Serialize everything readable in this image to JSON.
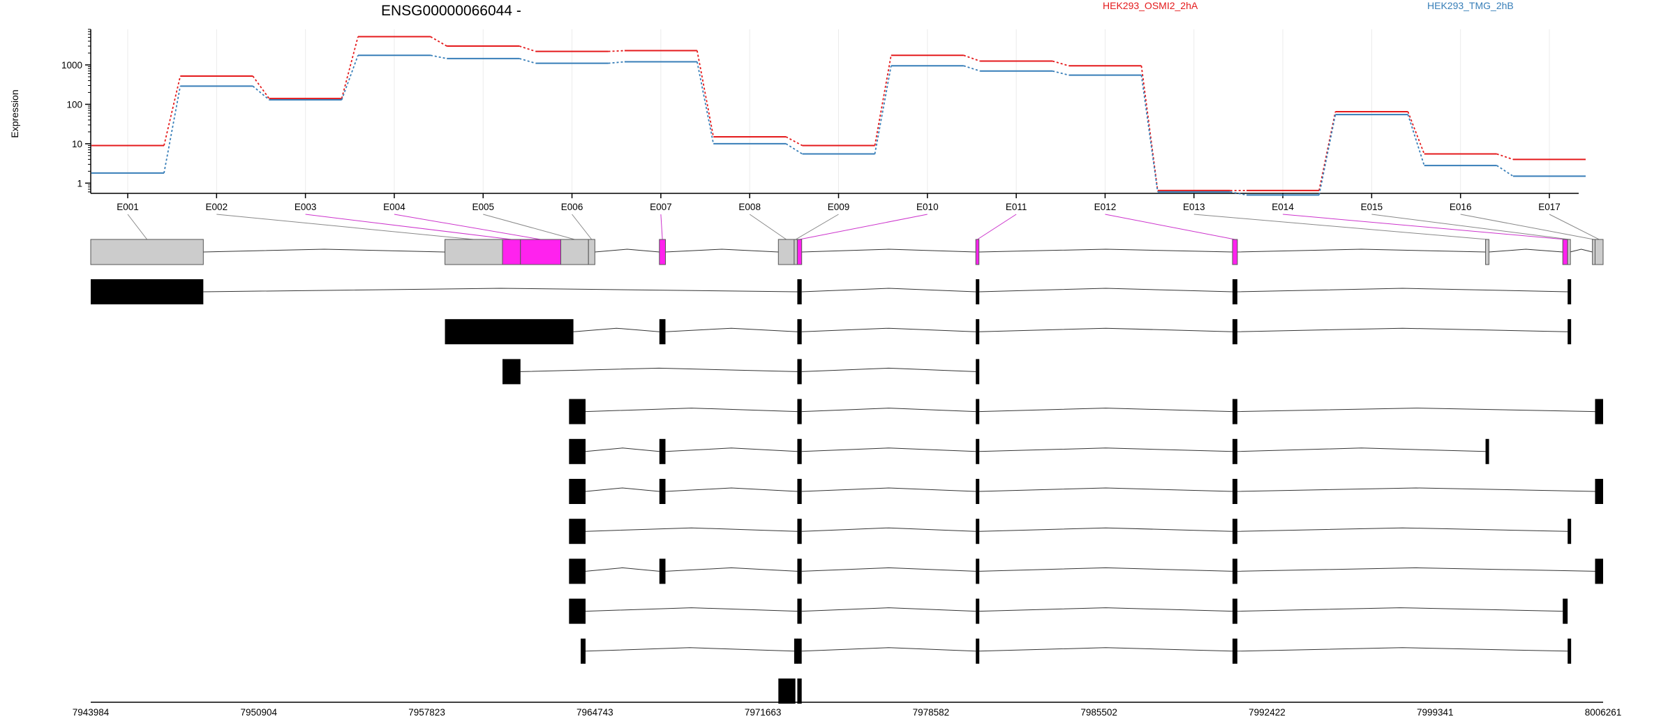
{
  "chart_data": {
    "type": "line",
    "title": "ENSG00000066044 -",
    "ylabel": "Expression",
    "xlabel": "",
    "y_scale": "log10",
    "ylim": [
      0.55,
      8000
    ],
    "y_ticks": [
      {
        "value": 1,
        "label": "1"
      },
      {
        "value": 10,
        "label": "10"
      },
      {
        "value": 100,
        "label": "100"
      },
      {
        "value": 1000,
        "label": "1000"
      }
    ],
    "grid": "vertical",
    "legend_placement": "top-right",
    "categories": [
      "E001",
      "E002",
      "E003",
      "E004",
      "E005",
      "E006",
      "E007",
      "E008",
      "E009",
      "E010",
      "E011",
      "E012",
      "E013",
      "E014",
      "E015",
      "E016",
      "E017"
    ],
    "series": [
      {
        "name": "HEK293_OSMI2_2hA",
        "color": "#e41a1c",
        "values": [
          9,
          520,
          140,
          5200,
          3000,
          2200,
          2300,
          15,
          9,
          1750,
          1250,
          950,
          0.65,
          0.65,
          65,
          5.5,
          4
        ]
      },
      {
        "name": "HEK293_TMG_2hB",
        "color": "#377eb8",
        "values": [
          1.8,
          290,
          130,
          1750,
          1450,
          1100,
          1200,
          10,
          5.5,
          950,
          700,
          550,
          0.6,
          0.5,
          55,
          2.8,
          1.5
        ]
      }
    ],
    "genomic_axis": {
      "range": [
        7943984,
        8006261
      ],
      "tick_labels": [
        "7943984",
        "7950904",
        "7957823",
        "7964743",
        "7971663",
        "7978582",
        "7985502",
        "7992422",
        "7999341",
        "8006261"
      ]
    },
    "gene_model": {
      "exons": [
        {
          "id": "E001",
          "start": 7943984,
          "end": 7948620,
          "significant": false
        },
        {
          "id": "E002",
          "start": 7958570,
          "end": 7960940,
          "significant": false
        },
        {
          "id": "E003",
          "start": 7960940,
          "end": 7961680,
          "significant": true
        },
        {
          "id": "E004",
          "start": 7961680,
          "end": 7963340,
          "significant": true
        },
        {
          "id": "E005",
          "start": 7963340,
          "end": 7964480,
          "significant": false
        },
        {
          "id": "E006",
          "start": 7964480,
          "end": 7964743,
          "significant": false
        },
        {
          "id": "E007",
          "start": 7967400,
          "end": 7967650,
          "significant": true
        },
        {
          "id": "E008",
          "start": 7972300,
          "end": 7972950,
          "significant": false
        },
        {
          "id": "E009",
          "start": 7972950,
          "end": 7973080,
          "significant": false
        },
        {
          "id": "E010",
          "start": 7973080,
          "end": 7973260,
          "significant": true
        },
        {
          "id": "E011",
          "start": 7980430,
          "end": 7980560,
          "significant": true
        },
        {
          "id": "E012",
          "start": 7991000,
          "end": 7991200,
          "significant": true
        },
        {
          "id": "E013",
          "start": 8001420,
          "end": 8001560,
          "significant": false
        },
        {
          "id": "E014",
          "start": 8004600,
          "end": 8004800,
          "significant": true
        },
        {
          "id": "E015",
          "start": 8004800,
          "end": 8004900,
          "significant": false
        },
        {
          "id": "E016",
          "start": 8005820,
          "end": 8005930,
          "significant": false
        },
        {
          "id": "E017",
          "start": 8005930,
          "end": 8006261,
          "significant": false
        }
      ],
      "transcripts": [
        [
          [
            7943984,
            7948620
          ],
          [
            7973080,
            7973260
          ],
          [
            7980430,
            7980560
          ],
          [
            7991000,
            7991200
          ],
          [
            8004800,
            8004900
          ]
        ],
        [
          [
            7958570,
            7963860
          ],
          [
            7967400,
            7967650
          ],
          [
            7973080,
            7973260
          ],
          [
            7980430,
            7980560
          ],
          [
            7991000,
            7991200
          ],
          [
            8004800,
            8004900
          ]
        ],
        [
          [
            7960940,
            7961680
          ],
          [
            7973080,
            7973260
          ],
          [
            7980430,
            7980560
          ]
        ],
        [
          [
            7963680,
            7964360
          ],
          [
            7973080,
            7973260
          ],
          [
            7980430,
            7980560
          ],
          [
            7991000,
            7991200
          ],
          [
            8005930,
            8006261
          ]
        ],
        [
          [
            7963680,
            7964360
          ],
          [
            7967400,
            7967650
          ],
          [
            7973080,
            7973260
          ],
          [
            7980430,
            7980560
          ],
          [
            7991000,
            7991200
          ],
          [
            8001420,
            8001560
          ]
        ],
        [
          [
            7963680,
            7964360
          ],
          [
            7967400,
            7967650
          ],
          [
            7973080,
            7973260
          ],
          [
            7980430,
            7980560
          ],
          [
            7991000,
            7991200
          ],
          [
            8005930,
            8006261
          ]
        ],
        [
          [
            7963680,
            7964360
          ],
          [
            7973080,
            7973260
          ],
          [
            7980430,
            7980560
          ],
          [
            7991000,
            7991200
          ],
          [
            8004800,
            8004900
          ]
        ],
        [
          [
            7963680,
            7964360
          ],
          [
            7967400,
            7967650
          ],
          [
            7973080,
            7973260
          ],
          [
            7980430,
            7980560
          ],
          [
            7991000,
            7991200
          ],
          [
            8005930,
            8006261
          ]
        ],
        [
          [
            7963680,
            7964360
          ],
          [
            7973080,
            7973260
          ],
          [
            7980430,
            7980560
          ],
          [
            7991000,
            7991200
          ],
          [
            8004600,
            8004800
          ]
        ],
        [
          [
            7964160,
            7964360
          ],
          [
            7972950,
            7973080
          ],
          [
            7973080,
            7973260
          ],
          [
            7980430,
            7980560
          ],
          [
            7991000,
            7991200
          ],
          [
            8004800,
            8004900
          ]
        ],
        [
          [
            7972300,
            7973000
          ],
          [
            7973080,
            7973260
          ]
        ]
      ]
    }
  }
}
